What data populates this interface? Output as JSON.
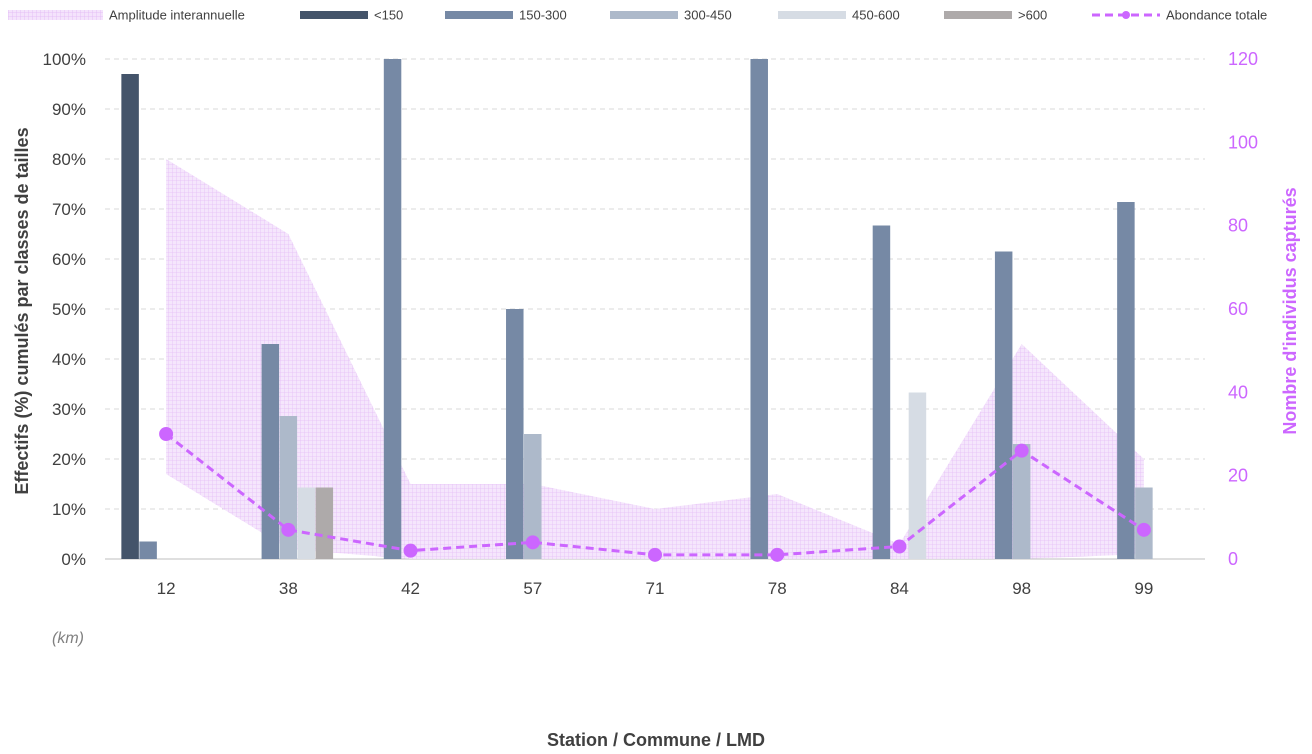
{
  "chart_data": {
    "type": "bar",
    "xlabel": "Station / Commune / LMD",
    "ylabel_left": "Effectifs (%) cumulés par classes de tailles",
    "ylabel_right": "Nombre d'individus capturés",
    "unit_note": "(km)",
    "categories": [
      "12",
      "38",
      "42",
      "57",
      "71",
      "78",
      "84",
      "98",
      "99"
    ],
    "ylim_left": [
      0,
      100
    ],
    "yticks_left": [
      "0%",
      "10%",
      "20%",
      "30%",
      "40%",
      "50%",
      "60%",
      "70%",
      "80%",
      "90%",
      "100%"
    ],
    "ylim_right": [
      0,
      120
    ],
    "yticks_right": [
      "0",
      "20",
      "40",
      "60",
      "80",
      "100",
      "120"
    ],
    "grid": true,
    "legend_position": "top",
    "series": [
      {
        "name": "<150",
        "color": "#44546A",
        "values": [
          97,
          0,
          0,
          0,
          0,
          0,
          0,
          0,
          0
        ]
      },
      {
        "name": "150-300",
        "color": "#7689A5",
        "values": [
          3.5,
          43,
          100,
          50,
          0,
          100,
          66.7,
          61.5,
          71.4
        ]
      },
      {
        "name": "300-450",
        "color": "#ADB9CA",
        "values": [
          0,
          28.6,
          0,
          25,
          0,
          0,
          0,
          23,
          14.3
        ]
      },
      {
        "name": "450-600",
        "color": "#D6DCE4",
        "values": [
          0,
          14.3,
          0,
          0,
          0,
          0,
          33.3,
          0,
          0
        ]
      },
      {
        "name": ">600",
        "color": "#AEAAAA",
        "values": [
          0,
          14.3,
          0,
          0,
          0,
          0,
          0,
          0,
          0
        ]
      }
    ],
    "band": {
      "name": "Amplitude interannuelle",
      "color": "#E7C4F7",
      "upper": [
        80,
        65,
        15,
        15,
        10,
        13,
        3,
        43,
        20
      ],
      "lower": [
        17,
        2,
        0,
        0,
        0,
        0,
        0,
        0,
        1
      ]
    },
    "line": {
      "name": "Abondance totale",
      "color": "#CC66FF",
      "axis": "right",
      "values": [
        30,
        7,
        2,
        4,
        1,
        1,
        3,
        26,
        7
      ]
    }
  }
}
